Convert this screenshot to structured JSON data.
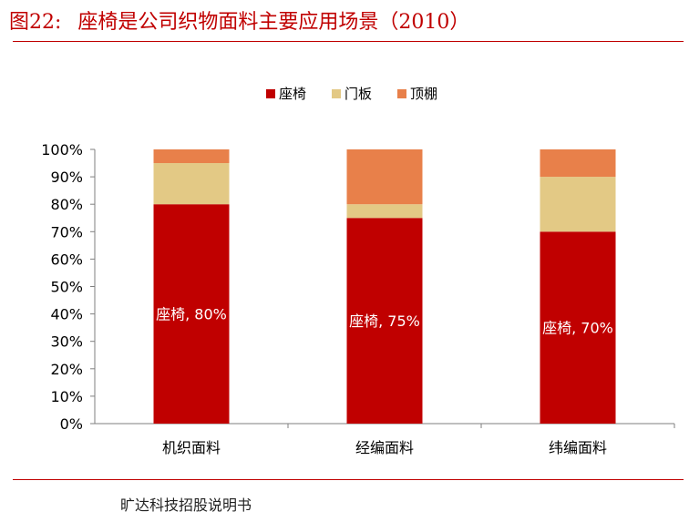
{
  "figure": {
    "number": "图22:",
    "title": "座椅是公司织物面料主要应用场景（2010）",
    "source": "旷达科技招股说明书"
  },
  "chart_data": {
    "type": "bar",
    "stacked": true,
    "categories": [
      "机织面料",
      "经编面料",
      "纬编面料"
    ],
    "series": [
      {
        "name": "座椅",
        "color": "#c00000",
        "values": [
          80,
          75,
          70
        ]
      },
      {
        "name": "门板",
        "color": "#e3c985",
        "values": [
          15,
          5,
          20
        ]
      },
      {
        "name": "顶棚",
        "color": "#e8804a",
        "values": [
          5,
          20,
          10
        ]
      }
    ],
    "data_labels": [
      "座椅, 80%",
      "座椅, 75%",
      "座椅, 70%"
    ],
    "y_ticks": [
      "0%",
      "10%",
      "20%",
      "30%",
      "40%",
      "50%",
      "60%",
      "70%",
      "80%",
      "90%",
      "100%"
    ],
    "ylim": [
      0,
      100
    ],
    "legend_position": "top-center",
    "grid": false
  }
}
